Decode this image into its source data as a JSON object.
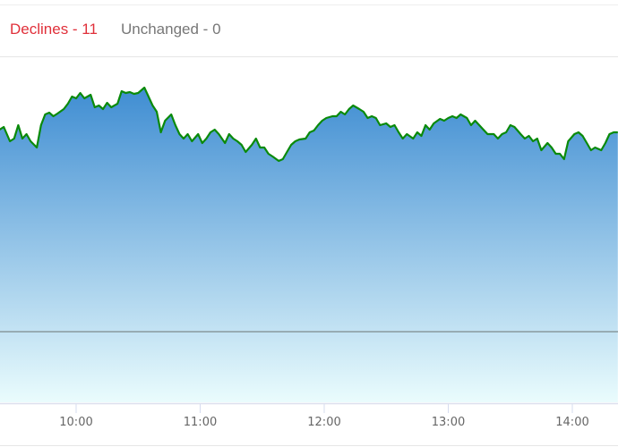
{
  "header": {
    "declines_label": "Declines - 11",
    "unchanged_label": "Unchanged - 0",
    "declines_color": "#e0303a",
    "unchanged_color": "#777777"
  },
  "chart_data": {
    "type": "area",
    "title": "",
    "xlabel": "",
    "ylabel": "",
    "x_ticks": [
      "10:00",
      "11:00",
      "12:00",
      "13:00",
      "14:00"
    ],
    "xlim": [
      "9:23",
      "14:22"
    ],
    "ylim": [
      -79,
      306
    ],
    "y_axis_shown": false,
    "reference_line_value": 0,
    "grid": false,
    "line_color": "#0a8a0a",
    "fill_gradient": [
      "#3f8dd2",
      "#eafcfd"
    ],
    "x": [
      "9:23",
      "9:25",
      "9:28",
      "9:30",
      "9:32",
      "9:34",
      "9:36",
      "9:38",
      "9:41",
      "9:43",
      "9:45",
      "9:47",
      "9:49",
      "9:51",
      "9:54",
      "9:56",
      "9:58",
      "10:00",
      "10:02",
      "10:04",
      "10:07",
      "10:09",
      "10:11",
      "10:13",
      "10:15",
      "10:17",
      "10:20",
      "10:22",
      "10:24",
      "10:26",
      "10:28",
      "10:30",
      "10:33",
      "10:35",
      "10:37",
      "10:39",
      "10:41",
      "10:43",
      "10:46",
      "10:48",
      "10:50",
      "10:52",
      "10:54",
      "10:56",
      "10:59",
      "11:01",
      "11:03",
      "11:05",
      "11:07",
      "11:09",
      "11:12",
      "11:14",
      "11:16",
      "11:18",
      "11:20",
      "11:22",
      "11:25",
      "11:27",
      "11:29",
      "11:31",
      "11:33",
      "11:35",
      "11:38",
      "11:40",
      "11:42",
      "11:44",
      "11:46",
      "11:48",
      "11:51",
      "11:53",
      "11:55",
      "11:57",
      "11:59",
      "12:01",
      "12:04",
      "12:06",
      "12:08",
      "12:10",
      "12:12",
      "12:14",
      "12:17",
      "12:19",
      "12:21",
      "12:23",
      "12:25",
      "12:27",
      "12:30",
      "12:32",
      "12:34",
      "12:36",
      "12:38",
      "12:40",
      "12:43",
      "12:45",
      "12:47",
      "12:49",
      "12:51",
      "12:53",
      "12:56",
      "12:58",
      "13:00",
      "13:02",
      "13:04",
      "13:06",
      "13:09",
      "13:11",
      "13:13",
      "13:15",
      "13:17",
      "13:19",
      "13:22",
      "13:24",
      "13:26",
      "13:28",
      "13:30",
      "13:32",
      "13:35",
      "13:37",
      "13:39",
      "13:41",
      "13:43",
      "13:45",
      "13:48",
      "13:50",
      "13:52",
      "13:54",
      "13:56",
      "13:58",
      "14:01",
      "14:03",
      "14:05",
      "14:07",
      "14:09",
      "14:11",
      "14:14",
      "14:16",
      "14:18",
      "14:20",
      "14:22"
    ],
    "values": [
      226,
      229,
      213,
      216,
      231,
      216,
      221,
      213,
      206,
      231,
      243,
      245,
      241,
      244,
      249,
      255,
      263,
      261,
      267,
      261,
      265,
      251,
      253,
      249,
      256,
      251,
      255,
      269,
      267,
      268,
      266,
      267,
      273,
      263,
      253,
      246,
      223,
      236,
      243,
      231,
      221,
      216,
      221,
      213,
      221,
      211,
      216,
      223,
      226,
      221,
      211,
      221,
      216,
      213,
      209,
      201,
      209,
      216,
      206,
      206,
      199,
      196,
      191,
      193,
      201,
      209,
      213,
      215,
      216,
      223,
      225,
      231,
      236,
      239,
      241,
      241,
      246,
      243,
      249,
      253,
      249,
      246,
      239,
      241,
      239,
      231,
      233,
      229,
      231,
      223,
      216,
      221,
      216,
      223,
      219,
      231,
      226,
      233,
      238,
      236,
      239,
      241,
      239,
      243,
      239,
      231,
      236,
      231,
      226,
      221,
      221,
      216,
      221,
      223,
      231,
      229,
      221,
      216,
      219,
      213,
      216,
      203,
      211,
      206,
      199,
      199,
      193,
      213,
      221,
      223,
      219,
      211,
      203,
      206,
      203,
      211,
      221,
      223,
      223
    ]
  }
}
